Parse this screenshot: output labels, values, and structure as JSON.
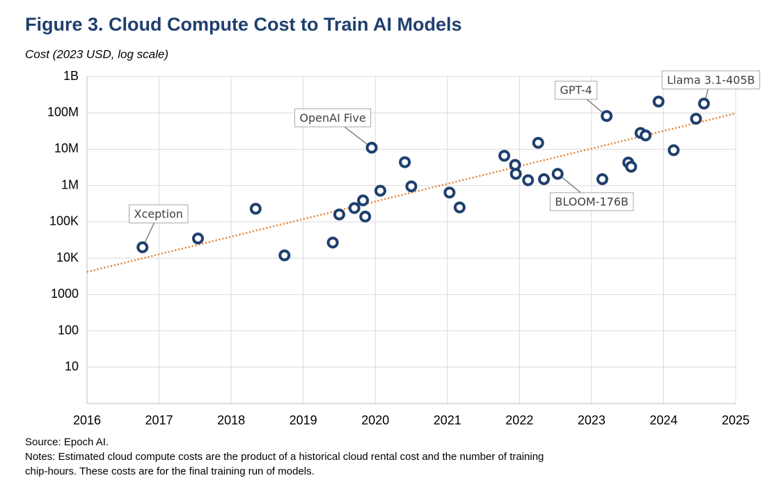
{
  "chart_data": {
    "type": "scatter",
    "title": "Figure 3. Cloud Compute Cost to Train AI Models",
    "y_label": "Cost (2023 USD, log scale)",
    "source": "Source: Epoch AI.",
    "notes": [
      "Notes: Estimated cloud compute costs are the product of a historical cloud rental cost and the number of training",
      "chip-hours. These costs are for the final training run of models."
    ],
    "log_y": true,
    "grid": true,
    "xlim": [
      2016,
      2025
    ],
    "xticks": [
      2016,
      2017,
      2018,
      2019,
      2020,
      2021,
      2022,
      2023,
      2024,
      2025
    ],
    "ylim": [
      1,
      1000000000
    ],
    "yticks": [
      {
        "value": 1000000000,
        "label": "1B"
      },
      {
        "value": 100000000,
        "label": "100M"
      },
      {
        "value": 10000000,
        "label": "10M"
      },
      {
        "value": 1000000,
        "label": "1M"
      },
      {
        "value": 100000,
        "label": "100K"
      },
      {
        "value": 10000,
        "label": "10K"
      },
      1000,
      100,
      10
    ],
    "color": "#1f3f6e",
    "x": [
      2016.77,
      2017.54,
      2018.34,
      2018.74,
      2019.41,
      2019.5,
      2019.71,
      2019.83,
      2019.86,
      2019.95,
      2020.07,
      2020.41,
      2020.5,
      2021.03,
      2021.17,
      2021.79,
      2021.94,
      2021.95,
      2022.12,
      2022.26,
      2022.34,
      2022.53,
      2023.15,
      2023.21,
      2023.51,
      2023.55,
      2023.68,
      2023.75,
      2023.93,
      2024.14,
      2024.45,
      2024.56
    ],
    "values": [
      20000,
      35000,
      230000,
      12000,
      27000,
      160000,
      240000,
      390000,
      140000,
      11000000,
      720000,
      4400000,
      950000,
      640000,
      250000,
      6600000,
      3700000,
      2100000,
      1400000,
      15000000,
      1500000,
      2100000,
      1500000,
      82000000,
      4300000,
      3300000,
      28000000,
      24000000,
      205000000,
      9400000,
      69000000,
      180000000
    ],
    "labels": [
      "Xception",
      null,
      null,
      null,
      null,
      null,
      null,
      null,
      null,
      "OpenAI Five",
      null,
      null,
      null,
      null,
      null,
      null,
      null,
      null,
      null,
      null,
      null,
      "BLOOM-176B",
      null,
      "GPT-4",
      null,
      null,
      null,
      null,
      null,
      null,
      null,
      "Llama 3.1-405B"
    ],
    "trend": {
      "x": [
        2016,
        2025
      ],
      "values": [
        4200,
        97000000
      ],
      "color": "#e07b27"
    }
  }
}
